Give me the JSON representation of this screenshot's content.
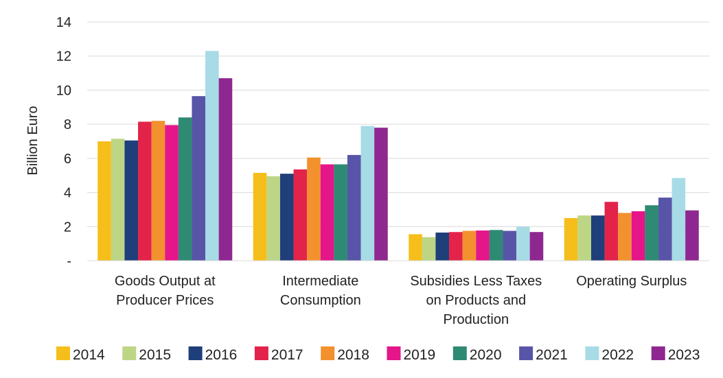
{
  "chart_data": {
    "type": "bar",
    "title": "",
    "xlabel": "",
    "ylabel": "Billion Euro",
    "ylim": [
      0,
      14
    ],
    "yticks": [
      {
        "value": 0,
        "label": "-"
      },
      {
        "value": 2,
        "label": "2"
      },
      {
        "value": 4,
        "label": "4"
      },
      {
        "value": 6,
        "label": "6"
      },
      {
        "value": 8,
        "label": "8"
      },
      {
        "value": 10,
        "label": "10"
      },
      {
        "value": 12,
        "label": "12"
      },
      {
        "value": 14,
        "label": "14"
      }
    ],
    "grid": true,
    "legend_position": "bottom",
    "categories": [
      [
        "Goods Output at",
        "Producer Prices"
      ],
      [
        "Intermediate",
        "Consumption"
      ],
      [
        "Subsidies Less Taxes",
        "on Products and",
        "Production"
      ],
      [
        "Operating Surplus"
      ]
    ],
    "series": [
      {
        "name": "2014",
        "color": "#F6BE1A",
        "values": [
          7.0,
          5.15,
          1.55,
          2.5
        ]
      },
      {
        "name": "2015",
        "color": "#BDD685",
        "values": [
          7.15,
          4.95,
          1.38,
          2.65
        ]
      },
      {
        "name": "2016",
        "color": "#1F3F7A",
        "values": [
          7.05,
          5.1,
          1.65,
          2.65
        ]
      },
      {
        "name": "2017",
        "color": "#E3234A",
        "values": [
          8.15,
          5.35,
          1.68,
          3.45
        ]
      },
      {
        "name": "2018",
        "color": "#F2912E",
        "values": [
          8.2,
          6.05,
          1.75,
          2.8
        ]
      },
      {
        "name": "2019",
        "color": "#E5158A",
        "values": [
          7.95,
          5.65,
          1.77,
          2.9
        ]
      },
      {
        "name": "2020",
        "color": "#2E8A73",
        "values": [
          8.4,
          5.65,
          1.8,
          3.25
        ]
      },
      {
        "name": "2021",
        "color": "#5854A8",
        "values": [
          9.65,
          6.2,
          1.75,
          3.7
        ]
      },
      {
        "name": "2022",
        "color": "#A7DBE6",
        "values": [
          12.3,
          7.9,
          2.0,
          4.85
        ]
      },
      {
        "name": "2023",
        "color": "#8E2890",
        "values": [
          10.7,
          7.8,
          1.68,
          2.95
        ]
      }
    ]
  }
}
